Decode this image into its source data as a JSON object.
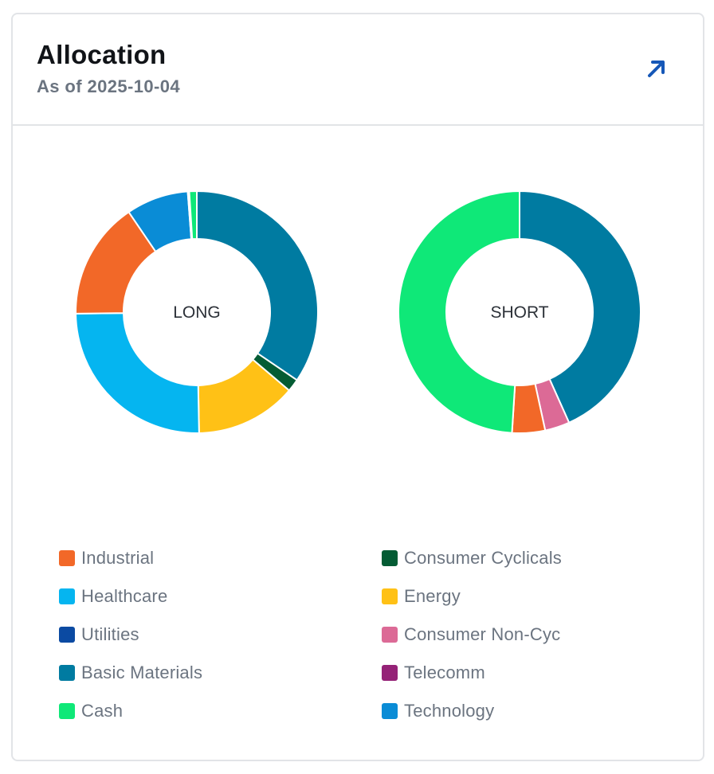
{
  "header": {
    "title": "Allocation",
    "subtitle": "As of 2025-10-04",
    "expand_icon": "arrow-up-right-icon"
  },
  "colors": {
    "Industrial": "#f26828",
    "Healthcare": "#05b5f0",
    "Utilities": "#0b4aa2",
    "Basic Materials": "#007ba1",
    "Cash": "#0fe878",
    "Consumer Cyclicals": "#045c34",
    "Energy": "#ffc116",
    "Consumer Non-Cyc": "#dc6a96",
    "Telecomm": "#952277",
    "Technology": "#0a8cd6"
  },
  "chart_data": [
    {
      "type": "pie",
      "donut": true,
      "center_label": "LONG",
      "slices": [
        {
          "name": "Basic Materials",
          "value": 34.5
        },
        {
          "name": "Consumer Cyclicals",
          "value": 1.7
        },
        {
          "name": "Energy",
          "value": 13.5
        },
        {
          "name": "Healthcare",
          "value": 25.1
        },
        {
          "name": "Industrial",
          "value": 15.7
        },
        {
          "name": "Technology",
          "value": 8.3
        },
        {
          "name": "Utilities",
          "value": 0.2
        },
        {
          "name": "Cash",
          "value": 1.0
        }
      ]
    },
    {
      "type": "pie",
      "donut": true,
      "center_label": "SHORT",
      "slices": [
        {
          "name": "Basic Materials",
          "value": 43.3
        },
        {
          "name": "Consumer Non-Cyc",
          "value": 3.3
        },
        {
          "name": "Industrial",
          "value": 4.4
        },
        {
          "name": "Cash",
          "value": 49.0
        }
      ]
    }
  ],
  "legend": {
    "items": [
      {
        "label": "Industrial"
      },
      {
        "label": "Consumer Cyclicals"
      },
      {
        "label": "Healthcare"
      },
      {
        "label": "Energy"
      },
      {
        "label": "Utilities"
      },
      {
        "label": "Consumer Non-Cyc"
      },
      {
        "label": "Basic Materials"
      },
      {
        "label": "Telecomm"
      },
      {
        "label": "Cash"
      },
      {
        "label": "Technology"
      }
    ]
  }
}
